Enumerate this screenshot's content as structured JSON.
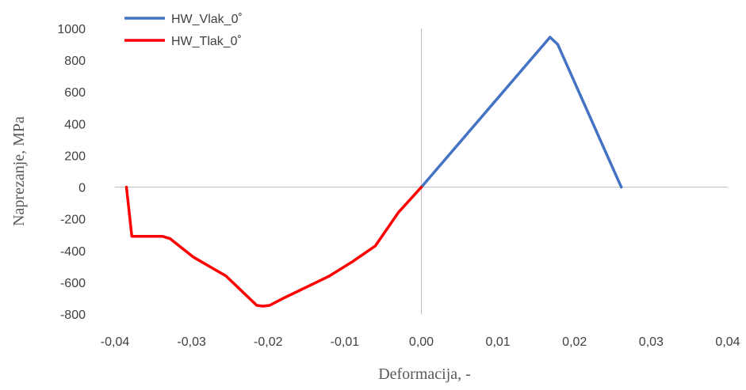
{
  "chart_data": {
    "type": "line",
    "title": "",
    "xlabel": "Deformacija, -",
    "ylabel": "Naprezanje, MPa",
    "xlim": [
      -0.04,
      0.04
    ],
    "ylim": [
      -800,
      1000
    ],
    "x_ticks": [
      "-0,04",
      "-0,03",
      "-0,02",
      "-0,01",
      "0,00",
      "0,01",
      "0,02",
      "0,03",
      "0,04"
    ],
    "y_ticks": [
      "1000",
      "800",
      "600",
      "400",
      "200",
      "0",
      "-200",
      "-400",
      "-600",
      "-800"
    ],
    "x_tick_values": [
      -0.04,
      -0.03,
      -0.02,
      -0.01,
      0.0,
      0.01,
      0.02,
      0.03,
      0.04
    ],
    "y_tick_values": [
      1000,
      800,
      600,
      400,
      200,
      0,
      -200,
      -400,
      -600,
      -800
    ],
    "grid": false,
    "legend_position": "top-left",
    "series": [
      {
        "name": "HW_Vlak_0˚",
        "color": "#4472C4",
        "x": [
          0.0,
          0.0168,
          0.0178,
          0.0261
        ],
        "y": [
          0,
          945,
          900,
          0
        ]
      },
      {
        "name": "HW_Tlak_0˚",
        "color": "#FF0000",
        "x": [
          0.0,
          -0.003,
          -0.006,
          -0.009,
          -0.012,
          -0.015,
          -0.018,
          -0.0198,
          -0.0207,
          -0.0215,
          -0.0255,
          -0.0298,
          -0.0328,
          -0.0338,
          -0.0378,
          -0.0385
        ],
        "y": [
          0,
          -160,
          -370,
          -470,
          -560,
          -630,
          -700,
          -745,
          -750,
          -745,
          -560,
          -440,
          -325,
          -310,
          -310,
          0
        ]
      }
    ]
  }
}
